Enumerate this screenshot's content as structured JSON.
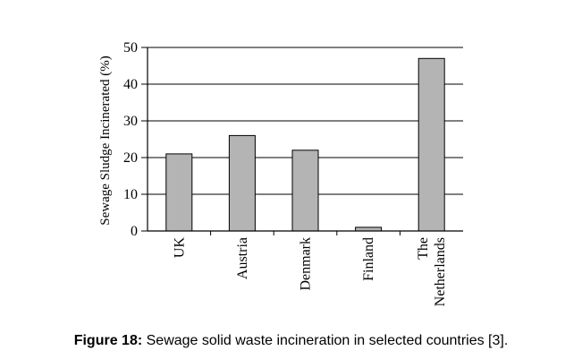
{
  "chart_data": {
    "type": "bar",
    "categories": [
      "UK",
      "Austria",
      "Denmark",
      "Finland",
      "The Netherlands"
    ],
    "category_label_lines": [
      [
        "UK"
      ],
      [
        "Austria"
      ],
      [
        "Denmark"
      ],
      [
        "Finland"
      ],
      [
        "The",
        "Netherlands"
      ]
    ],
    "values": [
      21,
      26,
      22,
      1,
      47
    ],
    "ylabel": "Sewage Sludge Incinerated (%)",
    "xlabel": "",
    "ylim": [
      0,
      50
    ],
    "yticks": [
      0,
      10,
      20,
      30,
      40,
      50
    ],
    "grid": true,
    "bar_color": "#b4b4b4"
  },
  "caption": {
    "label": "Figure 18:",
    "text": " Sewage solid waste incineration in selected countries [3]."
  }
}
